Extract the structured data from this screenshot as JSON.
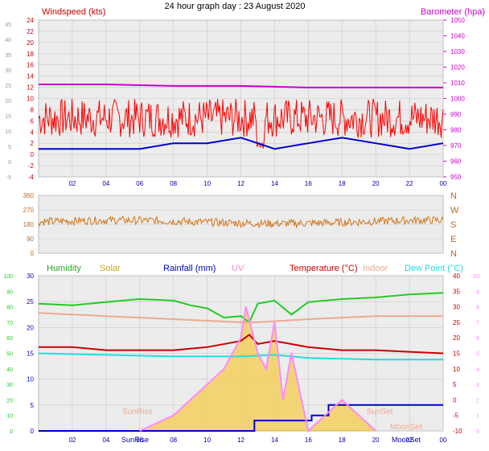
{
  "page": {
    "title": "24 hour graph day : 23 August 2020"
  },
  "panels": {
    "wind": {
      "left_label": "Windspeed (kts)",
      "right_label": "Barometer (hpa)",
      "left_ticks": [
        "24",
        "22",
        "20",
        "18",
        "16",
        "14",
        "12",
        "10",
        "8",
        "6",
        "4",
        "2",
        "0",
        "-2",
        "-4"
      ],
      "outer_ticks": [
        "45",
        "40",
        "35",
        "30",
        "25",
        "20",
        "15",
        "10",
        "5",
        "0",
        "-5"
      ],
      "right_ticks": [
        "1050",
        "1040",
        "1030",
        "1020",
        "1010",
        "1000",
        "990",
        "980",
        "970",
        "960",
        "950"
      ]
    },
    "direction": {
      "left_ticks": [
        "360",
        "270",
        "180",
        "90",
        "0"
      ],
      "compass": [
        "N",
        "W",
        "S",
        "E",
        "N"
      ]
    },
    "climate": {
      "legend": {
        "humidity": "Humidity",
        "solar": "Solar",
        "rainfall": "Rainfall (mm)",
        "uv": "UV",
        "temperature": "Temperature (°C)",
        "indoor": "Indoor",
        "dewpoint": "Dew Point (°C)"
      },
      "humidity_ticks": [
        "100",
        "90",
        "80",
        "70",
        "60",
        "50",
        "40",
        "30",
        "20",
        "10",
        "0"
      ],
      "rain_ticks": [
        "30",
        "25",
        "20",
        "15",
        "10",
        "5",
        "0"
      ],
      "temp_ticks": [
        "40",
        "35",
        "30",
        "25",
        "20",
        "15",
        "10",
        "5",
        "0",
        "-5",
        "-10"
      ],
      "uv_ticks": [
        "10",
        "9",
        "8",
        "7",
        "6",
        "5",
        "4",
        "3",
        "2",
        "1",
        "0"
      ],
      "annotations": {
        "sunrise": "SunRise",
        "sunset": "SunSet",
        "moonset": "MoonSet"
      }
    }
  },
  "x_ticks": [
    "02",
    "04",
    "06",
    "08",
    "10",
    "12",
    "14",
    "16",
    "18",
    "20",
    "22",
    "00"
  ],
  "colors": {
    "wind_left": "#cc0000",
    "barometer": "#cc00cc",
    "wind_gust": "#ff0000",
    "wind_avg": "#0000cc",
    "direction": "#d4761a",
    "direction_axis": "#c06818",
    "humidity": "#22cc22",
    "solar": "#d4b21a",
    "rainfall": "#0000cc",
    "uv": "#ff88ff",
    "temperature": "#cc0000",
    "indoor": "#f0a890",
    "dewpoint": "#22dddd",
    "gridline": "#c8c8c8",
    "panel_bg": "#ececec"
  },
  "chart_data": [
    {
      "type": "line",
      "panel": "wind",
      "x_unit": "hour",
      "xlim": [
        0,
        24
      ],
      "ylim_left": [
        -4,
        24
      ],
      "ylim_right": [
        950,
        1050
      ],
      "series": [
        {
          "name": "Windspeed (kts)",
          "axis": "left",
          "x": [
            0,
            2,
            4,
            6,
            8,
            10,
            12,
            13,
            14,
            16,
            18,
            20,
            22,
            24
          ],
          "values": [
            1,
            1,
            1,
            1,
            2,
            2,
            3,
            2,
            1,
            2,
            3,
            2,
            1,
            2
          ]
        },
        {
          "name": "Barometer (hpa)",
          "axis": "right",
          "x": [
            0,
            4,
            8,
            12,
            16,
            20,
            24
          ],
          "values": [
            1009,
            1009,
            1008,
            1008,
            1007,
            1007,
            1007
          ]
        }
      ]
    },
    {
      "type": "line",
      "panel": "direction",
      "xlim": [
        0,
        24
      ],
      "ylim": [
        0,
        360
      ],
      "series": [
        {
          "x": [
            0,
            4,
            8,
            12,
            16,
            20,
            24
          ],
          "values": [
            205,
            200,
            195,
            190,
            190,
            185,
            195
          ]
        }
      ]
    },
    {
      "type": "line",
      "panel": "climate",
      "xlim": [
        0,
        24
      ],
      "series": [
        {
          "name": "Humidity",
          "axis": "humidity",
          "ylim": [
            0,
            100
          ],
          "x": [
            0,
            2,
            4,
            6,
            8,
            9,
            10,
            11,
            12,
            12.5,
            13,
            14,
            15,
            16,
            17,
            18,
            20,
            22,
            24
          ],
          "values": [
            82,
            81,
            83,
            85,
            84,
            81,
            79,
            73,
            74,
            70,
            82,
            84,
            75,
            83,
            84,
            85,
            86,
            88,
            89
          ]
        },
        {
          "name": "Temperature (°C)",
          "axis": "temp",
          "ylim": [
            -10,
            40
          ],
          "x": [
            0,
            2,
            4,
            6,
            8,
            10,
            12,
            12.5,
            13,
            14,
            16,
            18,
            20,
            22,
            24
          ],
          "values": [
            17,
            17,
            16,
            16,
            16,
            17,
            19,
            21,
            18,
            19,
            17,
            16,
            16,
            15.5,
            15
          ]
        },
        {
          "name": "Indoor",
          "axis": "temp",
          "ylim": [
            -10,
            40
          ],
          "x": [
            0,
            4,
            8,
            12,
            13,
            16,
            20,
            24
          ],
          "values": [
            28,
            27,
            26,
            25,
            25,
            26,
            27,
            27
          ]
        },
        {
          "name": "Dew Point (°C)",
          "axis": "temp",
          "ylim": [
            -10,
            40
          ],
          "x": [
            0,
            4,
            8,
            12,
            14,
            16,
            20,
            24
          ],
          "values": [
            15,
            14.5,
            14,
            14,
            14.5,
            13.5,
            13,
            13
          ]
        },
        {
          "name": "Rainfall (mm)",
          "axis": "rain",
          "ylim": [
            0,
            30
          ],
          "x": [
            0,
            12.7,
            12.8,
            16,
            16.2,
            17.2,
            24
          ],
          "values": [
            0,
            0,
            2,
            2,
            3,
            5,
            5
          ]
        },
        {
          "name": "Solar",
          "axis": "uv",
          "ylim": [
            0,
            10
          ],
          "x": [
            6,
            8,
            10,
            11,
            12,
            12.3,
            13,
            13.5,
            14,
            14.5,
            15,
            16,
            17,
            18,
            19,
            20
          ],
          "values": [
            0,
            1,
            3,
            4,
            6,
            8,
            5,
            4,
            7,
            2,
            5,
            0,
            1,
            2,
            1,
            0
          ]
        },
        {
          "name": "UV",
          "axis": "uv",
          "ylim": [
            0,
            10
          ],
          "x": [
            6,
            8,
            10,
            11,
            12,
            12.3,
            13,
            13.5,
            14,
            14.5,
            15,
            16,
            17,
            18,
            19,
            20
          ],
          "values": [
            0,
            1,
            3,
            4,
            6,
            8,
            5,
            4,
            7,
            2,
            5,
            0,
            1,
            2,
            1,
            0
          ]
        }
      ]
    }
  ]
}
